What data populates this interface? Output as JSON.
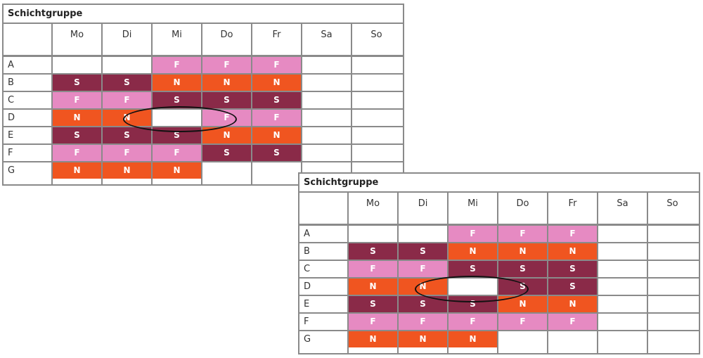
{
  "schedules": [
    {
      "title": "Schichtgruppe",
      "days": [
        "Mo",
        "Di",
        "Mi",
        "Do",
        "Fr",
        "Sa",
        "So"
      ],
      "rows": [
        {
          "label": "A",
          "shifts": [
            "",
            "",
            "F",
            "F",
            "F",
            "",
            ""
          ]
        },
        {
          "label": "B",
          "shifts": [
            "S",
            "S",
            "N",
            "N",
            "N",
            "",
            ""
          ]
        },
        {
          "label": "C",
          "shifts": [
            "F",
            "F",
            "S",
            "S",
            "S",
            "",
            ""
          ]
        },
        {
          "label": "D",
          "shifts": [
            "N",
            "N",
            "",
            "F",
            "F",
            "",
            ""
          ]
        },
        {
          "label": "E",
          "shifts": [
            "S",
            "S",
            "S",
            "N",
            "N",
            "",
            ""
          ]
        },
        {
          "label": "F",
          "shifts": [
            "F",
            "F",
            "F",
            "S",
            "S",
            "",
            ""
          ]
        },
        {
          "label": "G",
          "shifts": [
            "N",
            "N",
            "N",
            "",
            "",
            "",
            ""
          ]
        }
      ]
    },
    {
      "title": "Schichtgruppe",
      "days": [
        "Mo",
        "Di",
        "Mi",
        "Do",
        "Fr",
        "Sa",
        "So"
      ],
      "rows": [
        {
          "label": "A",
          "shifts": [
            "",
            "",
            "F",
            "F",
            "F",
            "",
            ""
          ]
        },
        {
          "label": "B",
          "shifts": [
            "S",
            "S",
            "N",
            "N",
            "N",
            "",
            ""
          ]
        },
        {
          "label": "C",
          "shifts": [
            "F",
            "F",
            "S",
            "S",
            "S",
            "",
            ""
          ]
        },
        {
          "label": "D",
          "shifts": [
            "N",
            "N",
            "",
            "S",
            "S",
            "",
            ""
          ]
        },
        {
          "label": "E",
          "shifts": [
            "S",
            "S",
            "S",
            "N",
            "N",
            "",
            ""
          ]
        },
        {
          "label": "F",
          "shifts": [
            "F",
            "F",
            "F",
            "F",
            "F",
            "",
            ""
          ]
        },
        {
          "label": "G",
          "shifts": [
            "N",
            "N",
            "N",
            "",
            "",
            "",
            ""
          ]
        }
      ]
    }
  ],
  "shift_colors": {
    "F": "#e68ac2",
    "S": "#8a2a48",
    "N": "#f05520"
  }
}
